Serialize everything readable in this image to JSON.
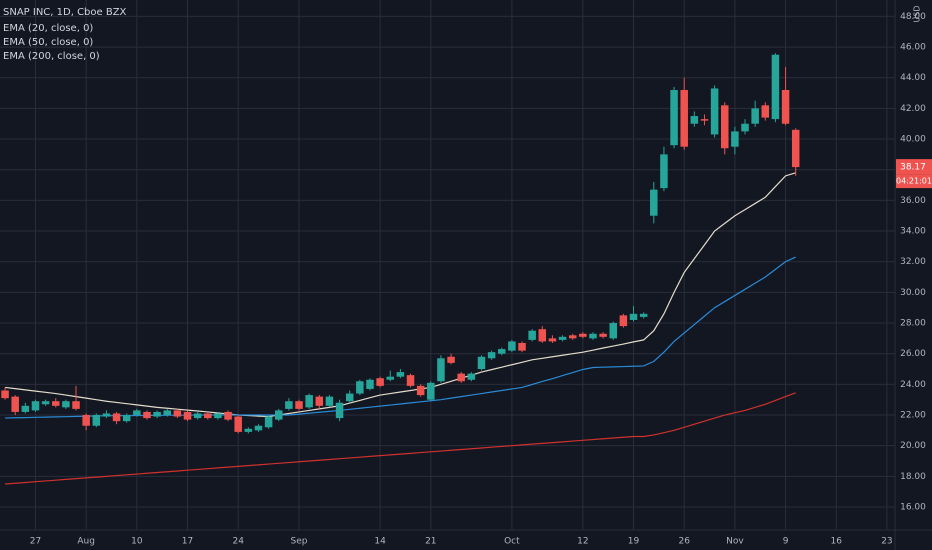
{
  "chart_data": {
    "type": "candlestick",
    "title": "SNAP INC, 1D, Cboe BZX",
    "currency": "USD",
    "last_price_label": "38.17",
    "countdown": "04:21:01",
    "up_color": "#26a69a",
    "down_color": "#ef5350",
    "grid": true,
    "categories": [
      null,
      null,
      null,
      "27",
      null,
      null,
      null,
      null,
      "Aug",
      null,
      null,
      null,
      null,
      "10",
      null,
      null,
      null,
      null,
      "17",
      null,
      null,
      null,
      null,
      "24",
      null,
      null,
      null,
      null,
      null,
      "Sep",
      null,
      null,
      null,
      null,
      null,
      null,
      null,
      "14",
      null,
      null,
      null,
      null,
      "21",
      null,
      null,
      null,
      null,
      null,
      null,
      null,
      "Oct",
      null,
      null,
      null,
      null,
      null,
      null,
      "12",
      null,
      null,
      null,
      null,
      "19",
      null,
      null,
      null,
      null,
      "26",
      null,
      null,
      null,
      null,
      "Nov",
      null,
      null,
      null,
      null,
      "9",
      null,
      null,
      null,
      null,
      "16",
      null,
      null,
      null,
      null,
      "23"
    ],
    "open": [
      23.6,
      23.2,
      22.2,
      22.3,
      22.7,
      22.9,
      22.5,
      22.9,
      22.0,
      21.3,
      21.9,
      22.1,
      21.6,
      22.0,
      22.2,
      21.9,
      22.0,
      22.3,
      22.2,
      21.8,
      22.1,
      21.8,
      22.2,
      21.9,
      20.9,
      21.0,
      21.2,
      21.7,
      22.4,
      22.9,
      22.5,
      23.2,
      22.6,
      21.8,
      22.9,
      23.4,
      23.7,
      24.4,
      24.3,
      24.5,
      24.6,
      23.9,
      23.0,
      24.2,
      25.8,
      24.7,
      24.3,
      25.0,
      25.7,
      26.0,
      26.2,
      26.7,
      26.9,
      27.6,
      27.0,
      26.9,
      27.2,
      27.3,
      27.0,
      27.3,
      27.0,
      28.5,
      28.2,
      28.4,
      35.0,
      36.8,
      39.6,
      43.2,
      41.0,
      41.3,
      40.3,
      42.2,
      39.5,
      40.5,
      41.0,
      42.2,
      41.3,
      43.2,
      40.6,
      null,
      null,
      null,
      null,
      null,
      null,
      null,
      null,
      null
    ],
    "high": [
      23.8,
      23.3,
      22.8,
      23.0,
      23.0,
      23.1,
      23.0,
      23.9,
      22.1,
      22.1,
      22.3,
      22.2,
      22.1,
      22.4,
      22.3,
      22.3,
      22.4,
      22.4,
      22.3,
      22.2,
      22.2,
      22.2,
      22.3,
      22.0,
      21.2,
      21.4,
      22.0,
      22.4,
      23.1,
      23.0,
      23.4,
      23.3,
      23.3,
      23.0,
      23.6,
      24.3,
      24.4,
      24.5,
      24.9,
      25.0,
      24.7,
      24.0,
      24.2,
      25.9,
      26.0,
      24.8,
      24.8,
      25.9,
      26.2,
      26.4,
      26.9,
      26.8,
      27.6,
      27.8,
      27.2,
      27.2,
      27.3,
      27.4,
      27.4,
      27.4,
      28.1,
      28.6,
      29.1,
      28.7,
      37.2,
      39.5,
      43.4,
      44.0,
      41.8,
      41.6,
      43.5,
      42.4,
      40.8,
      41.3,
      42.5,
      42.4,
      45.6,
      44.7,
      40.7,
      null,
      null,
      null,
      null,
      null,
      null,
      null,
      null,
      null
    ],
    "low": [
      23.0,
      22.0,
      22.1,
      22.2,
      22.6,
      22.5,
      22.4,
      22.3,
      21.0,
      21.2,
      21.8,
      21.4,
      21.5,
      21.9,
      21.7,
      21.8,
      21.9,
      21.8,
      21.6,
      21.7,
      21.7,
      21.7,
      21.6,
      20.8,
      20.8,
      20.9,
      21.1,
      21.6,
      22.3,
      22.3,
      22.4,
      22.4,
      22.5,
      21.6,
      22.8,
      23.3,
      23.6,
      23.8,
      24.2,
      24.4,
      23.8,
      23.2,
      22.9,
      24.1,
      25.3,
      24.1,
      24.2,
      24.9,
      25.6,
      25.9,
      26.1,
      26.1,
      26.8,
      26.7,
      26.7,
      26.8,
      26.9,
      27.0,
      26.9,
      27.0,
      26.9,
      27.7,
      28.1,
      28.3,
      34.5,
      36.6,
      39.4,
      39.3,
      40.8,
      40.9,
      40.1,
      39.0,
      39.0,
      40.3,
      40.8,
      41.2,
      41.1,
      40.9,
      37.6,
      null,
      null,
      null,
      null,
      null,
      null,
      null,
      null,
      null
    ],
    "close": [
      23.1,
      22.2,
      22.6,
      22.9,
      22.9,
      22.6,
      22.9,
      22.4,
      21.3,
      22.0,
      22.1,
      21.6,
      22.0,
      22.3,
      21.8,
      22.2,
      22.3,
      21.9,
      21.7,
      22.1,
      21.8,
      22.1,
      21.7,
      20.9,
      21.1,
      21.3,
      21.9,
      22.3,
      22.9,
      22.4,
      23.3,
      22.6,
      23.2,
      22.8,
      23.4,
      24.2,
      24.3,
      23.9,
      24.5,
      24.8,
      23.9,
      23.3,
      24.1,
      25.7,
      25.4,
      24.2,
      24.7,
      25.8,
      26.1,
      26.3,
      26.8,
      26.2,
      27.5,
      26.8,
      26.8,
      27.1,
      27.0,
      27.1,
      27.3,
      27.1,
      28.0,
      27.8,
      28.6,
      28.6,
      36.7,
      39.0,
      43.2,
      39.5,
      41.5,
      41.2,
      43.3,
      39.4,
      40.5,
      41.0,
      42.0,
      41.4,
      45.5,
      41.0,
      38.17,
      null,
      null,
      null,
      null,
      null,
      null,
      null,
      null,
      null
    ],
    "series": [
      {
        "name": "EMA (20, close, 0)",
        "color": "#e3dccb",
        "values": [
          23.8,
          23.72,
          23.64,
          23.56,
          23.48,
          23.4,
          23.3,
          23.2,
          23.1,
          23.0,
          22.9,
          22.82,
          22.74,
          22.66,
          22.58,
          22.5,
          22.44,
          22.38,
          22.32,
          22.26,
          22.2,
          22.13,
          22.07,
          22.0,
          21.97,
          21.93,
          21.9,
          22.0,
          22.1,
          22.2,
          22.3,
          22.4,
          22.5,
          22.6,
          22.78,
          22.95,
          23.13,
          23.3,
          23.4,
          23.5,
          23.6,
          23.7,
          23.8,
          24.0,
          24.2,
          24.4,
          24.6,
          24.8,
          24.96,
          25.12,
          25.28,
          25.44,
          25.6,
          25.7,
          25.8,
          25.9,
          26.0,
          26.1,
          26.23,
          26.37,
          26.5,
          26.63,
          26.77,
          26.9,
          27.5,
          28.6,
          30.0,
          31.3,
          32.2,
          33.1,
          34.0,
          34.5,
          35.0,
          35.4,
          35.8,
          36.2,
          36.9,
          37.6,
          37.8,
          null,
          null,
          null,
          null,
          null,
          null,
          null,
          null,
          null
        ]
      },
      {
        "name": "EMA (50, close, 0)",
        "color": "#2a8ad6",
        "values": [
          21.8,
          21.82,
          21.83,
          21.85,
          21.86,
          21.88,
          21.89,
          21.91,
          21.92,
          21.94,
          21.95,
          21.96,
          21.96,
          21.97,
          21.97,
          21.98,
          21.98,
          21.99,
          21.99,
          22.0,
          22.0,
          22.0,
          22.0,
          22.0,
          22.0,
          22.0,
          22.0,
          22.0,
          22.0,
          22.06,
          22.12,
          22.18,
          22.24,
          22.3,
          22.37,
          22.44,
          22.51,
          22.58,
          22.65,
          22.72,
          22.79,
          22.86,
          22.93,
          23.0,
          23.1,
          23.2,
          23.3,
          23.4,
          23.5,
          23.6,
          23.7,
          23.8,
          23.99,
          24.19,
          24.37,
          24.57,
          24.77,
          24.97,
          25.1,
          25.12,
          25.14,
          25.16,
          25.18,
          25.2,
          25.5,
          26.1,
          26.8,
          27.35,
          27.9,
          28.45,
          29.0,
          29.4,
          29.8,
          30.2,
          30.6,
          31.0,
          31.5,
          32.0,
          32.3,
          null,
          null,
          null,
          null,
          null,
          null,
          null,
          null,
          null
        ]
      },
      {
        "name": "EMA (200, close, 0)",
        "color": "#d0312d",
        "values": [
          17.5,
          17.55,
          17.6,
          17.65,
          17.7,
          17.75,
          17.8,
          17.85,
          17.9,
          17.95,
          18.0,
          18.05,
          18.1,
          18.15,
          18.2,
          18.25,
          18.3,
          18.35,
          18.4,
          18.45,
          18.5,
          18.55,
          18.6,
          18.65,
          18.7,
          18.75,
          18.8,
          18.85,
          18.9,
          18.95,
          19.0,
          19.05,
          19.1,
          19.15,
          19.2,
          19.25,
          19.3,
          19.35,
          19.4,
          19.45,
          19.5,
          19.55,
          19.6,
          19.65,
          19.7,
          19.75,
          19.8,
          19.85,
          19.9,
          19.95,
          20.0,
          20.05,
          20.1,
          20.15,
          20.2,
          20.25,
          20.3,
          20.35,
          20.4,
          20.45,
          20.5,
          20.55,
          20.6,
          20.6,
          20.7,
          20.85,
          21.0,
          21.2,
          21.4,
          21.6,
          21.8,
          22.0,
          22.15,
          22.3,
          22.5,
          22.7,
          22.95,
          23.2,
          23.45,
          null,
          null,
          null,
          null,
          null,
          null,
          null,
          null,
          null
        ]
      }
    ],
    "ylim": [
      14.5,
      49.07
    ],
    "yticks": [
      {
        "value": 16,
        "label": "16.00"
      },
      {
        "value": 18,
        "label": "18.00"
      },
      {
        "value": 20,
        "label": "20.00"
      },
      {
        "value": 22,
        "label": "22.00"
      },
      {
        "value": 24,
        "label": "24.00"
      },
      {
        "value": 26,
        "label": "26.00"
      },
      {
        "value": 28,
        "label": "28.00"
      },
      {
        "value": 30,
        "label": "30.00"
      },
      {
        "value": 32,
        "label": "32.00"
      },
      {
        "value": 34,
        "label": "34.00"
      },
      {
        "value": 36,
        "label": "36.00"
      },
      {
        "value": 38,
        "label": "38.00"
      },
      {
        "value": 40,
        "label": "40.00"
      },
      {
        "value": 42,
        "label": "42.00"
      },
      {
        "value": 44,
        "label": "44.00"
      },
      {
        "value": 46,
        "label": "46.00"
      },
      {
        "value": 48,
        "label": "48.00"
      }
    ]
  }
}
